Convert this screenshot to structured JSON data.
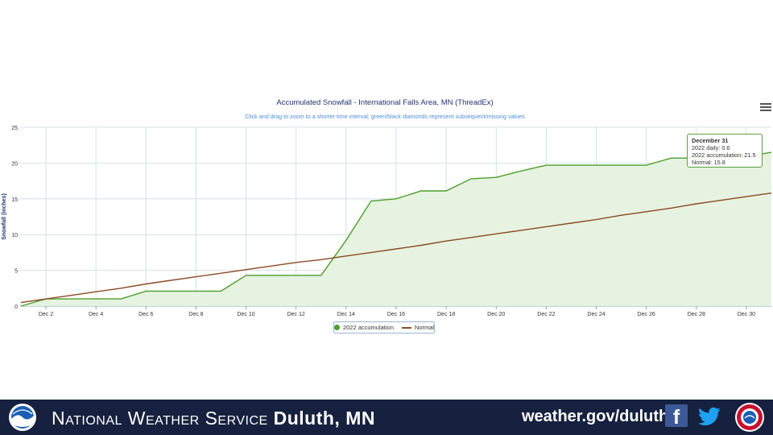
{
  "chart_data": {
    "type": "area",
    "title": "Accumulated Snowfall - International Falls Area, MN (ThreadEx)",
    "subtitle": "Click and drag to zoom to a shorter time interval; green/black diamonds represent subsequent/missing values",
    "ylabel": "Snowfall (inches)",
    "xlabel": "",
    "ylim": [
      0,
      25
    ],
    "yticks": [
      "0",
      "5",
      "10",
      "15",
      "20",
      "25"
    ],
    "xlim": [
      1,
      31
    ],
    "xticks": [
      {
        "day": 2,
        "label": "Dec 2"
      },
      {
        "day": 4,
        "label": "Dec 4"
      },
      {
        "day": 6,
        "label": "Dec 6"
      },
      {
        "day": 8,
        "label": "Dec 8"
      },
      {
        "day": 10,
        "label": "Dec 10"
      },
      {
        "day": 12,
        "label": "Dec 12"
      },
      {
        "day": 14,
        "label": "Dec 14"
      },
      {
        "day": 16,
        "label": "Dec 16"
      },
      {
        "day": 18,
        "label": "Dec 18"
      },
      {
        "day": 20,
        "label": "Dec 20"
      },
      {
        "day": 22,
        "label": "Dec 22"
      },
      {
        "day": 24,
        "label": "Dec 24"
      },
      {
        "day": 26,
        "label": "Dec 26"
      },
      {
        "day": 28,
        "label": "Dec 28"
      },
      {
        "day": 30,
        "label": "Dec 30"
      }
    ],
    "grid": true,
    "legend_position": "bottom-center",
    "series": [
      {
        "name": "2022 accumulation",
        "color": "#4c9e2d",
        "fill": "#e6f3e0",
        "x": [
          1,
          2,
          3,
          4,
          5,
          6,
          7,
          8,
          9,
          10,
          11,
          12,
          13,
          14,
          15,
          16,
          17,
          18,
          19,
          20,
          21,
          22,
          23,
          24,
          25,
          26,
          27,
          28,
          29,
          30,
          31
        ],
        "values": [
          0.0,
          1.0,
          1.0,
          1.0,
          1.0,
          2.1,
          2.1,
          2.1,
          2.1,
          4.3,
          4.3,
          4.3,
          4.3,
          9.2,
          14.7,
          15.0,
          16.1,
          16.1,
          17.8,
          18.0,
          18.9,
          19.7,
          19.7,
          19.7,
          19.7,
          19.7,
          20.7,
          20.7,
          20.7,
          20.9,
          21.5
        ]
      },
      {
        "name": "Normal",
        "color": "#8b4a23",
        "x": [
          1,
          2,
          3,
          4,
          5,
          6,
          7,
          8,
          9,
          10,
          11,
          12,
          13,
          14,
          15,
          16,
          17,
          18,
          19,
          20,
          21,
          22,
          23,
          24,
          25,
          26,
          27,
          28,
          29,
          30,
          31
        ],
        "values": [
          0.5,
          1.0,
          1.5,
          2.0,
          2.5,
          3.1,
          3.6,
          4.1,
          4.6,
          5.1,
          5.6,
          6.1,
          6.5,
          7.0,
          7.5,
          8.0,
          8.5,
          9.1,
          9.6,
          10.1,
          10.6,
          11.1,
          11.6,
          12.1,
          12.7,
          13.2,
          13.7,
          14.3,
          14.8,
          15.3,
          15.8
        ]
      }
    ],
    "tooltip": {
      "title": "December 31",
      "lines": [
        "2022 daily: 0.6",
        "2022 accumulation: 21.5",
        "Normal: 15.8"
      ]
    }
  },
  "footer": {
    "agency_prefix": "National Weather Service",
    "agency_office": "Duluth, MN",
    "url": "weather.gov/duluth",
    "bg_color": "#16213f"
  }
}
